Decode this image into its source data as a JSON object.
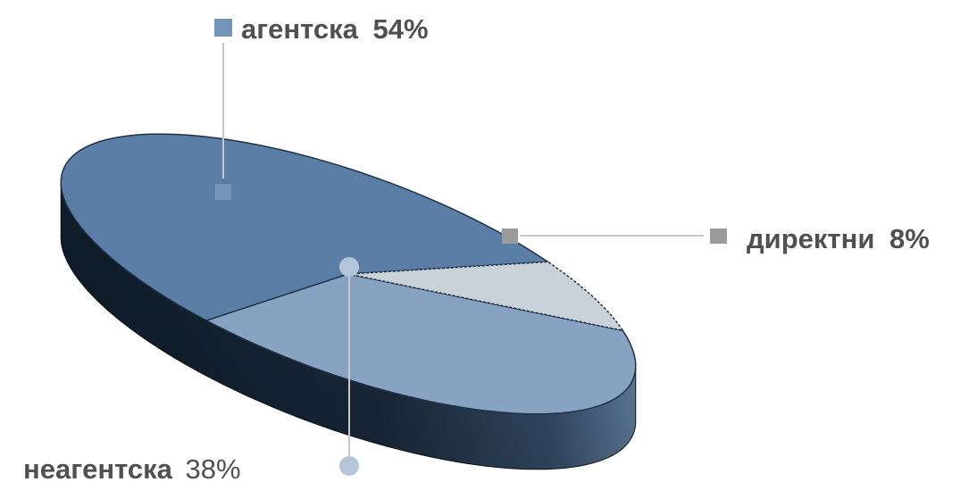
{
  "chart_data": {
    "type": "pie",
    "style": "3d-exploded-perspective",
    "slices": [
      {
        "key": "agent",
        "label": "агентска",
        "value": 54,
        "value_label": "54%",
        "color": "#5b7ea6",
        "marker": "square"
      },
      {
        "key": "nonagent",
        "label": "неагентска",
        "value": 38,
        "value_label": "38%",
        "color": "#87a3c1",
        "marker": "circle"
      },
      {
        "key": "direct",
        "label": "директни",
        "value": 8,
        "value_label": "8%",
        "color": "#c9d1d9",
        "marker": "square"
      }
    ],
    "colors": {
      "side_dark": "#0f1c2a",
      "side_light": "#4e6f95",
      "leader_line": "#c8c8c8",
      "text": "#505050",
      "marker_agent": "#7295b8",
      "marker_nonagent": "#b3c5d8",
      "marker_direct": "#9a9a9a"
    }
  }
}
